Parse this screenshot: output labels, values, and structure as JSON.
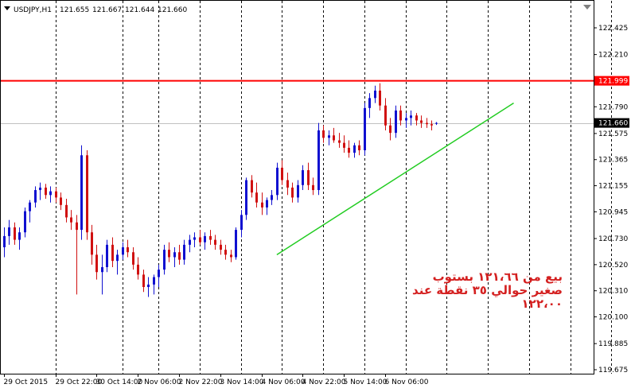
{
  "header": {
    "symbol": "USDJPY,H1",
    "open": "121.655",
    "high": "121.667",
    "low": "121.644",
    "close": "121.660"
  },
  "colors": {
    "bull_candle": "#1010d0",
    "bear_candle": "#d01010",
    "grid": "#000000",
    "resistance_line": "#ff0000",
    "trend_line": "#22cc22",
    "current_price_line": "#c0c0c0",
    "note_text": "#d42020"
  },
  "annotation": {
    "lines": [
      "بيع من ١٢١،٦٦ بستوب",
      "صغير حوالي ٣٥ نقطة عند",
      "١٢٢،٠٠"
    ]
  },
  "chart_data": {
    "type": "candlestick",
    "title": "",
    "xlabel": "",
    "ylabel": "",
    "ylim": [
      119.65,
      122.5
    ],
    "grid": true,
    "x_tick_labels": [
      "29 Oct 2015",
      "29 Oct 22:00",
      "30 Oct 14:00",
      "2 Nov 06:00",
      "2 Nov 22:00",
      "3 Nov 14:00",
      "4 Nov 06:00",
      "4 Nov 22:00",
      "5 Nov 14:00",
      "6 Nov 06:00"
    ],
    "y_tick_labels": [
      "122.425",
      "122.210",
      "121.790",
      "121.575",
      "121.365",
      "121.155",
      "120.945",
      "120.730",
      "120.520",
      "120.310",
      "120.100",
      "119.885",
      "119.675"
    ],
    "y_ticks": [
      122.425,
      122.21,
      121.79,
      121.575,
      121.365,
      121.155,
      120.945,
      120.73,
      120.52,
      120.31,
      120.1,
      119.885,
      119.675
    ],
    "resistance_level": {
      "value": 121.999,
      "label": "121.999"
    },
    "current_price": {
      "value": 121.66,
      "label": "121.660"
    },
    "trend_line": {
      "start": [
        53,
        120.6
      ],
      "end": [
        99,
        121.82
      ]
    },
    "vline_bars": [
      10,
      23,
      30,
      38,
      46,
      54,
      62,
      70,
      78,
      86,
      94,
      102,
      110,
      118,
      126
    ],
    "xtick_bars": [
      0,
      10,
      18,
      26,
      34,
      42,
      50,
      58,
      66,
      74
    ],
    "candles": [
      {
        "o": 120.66,
        "h": 120.82,
        "l": 120.58,
        "c": 120.75
      },
      {
        "o": 120.75,
        "h": 120.88,
        "l": 120.68,
        "c": 120.82
      },
      {
        "o": 120.82,
        "h": 120.86,
        "l": 120.68,
        "c": 120.72
      },
      {
        "o": 120.72,
        "h": 120.82,
        "l": 120.64,
        "c": 120.78
      },
      {
        "o": 120.78,
        "h": 120.98,
        "l": 120.74,
        "c": 120.95
      },
      {
        "o": 120.95,
        "h": 121.04,
        "l": 120.86,
        "c": 121.02
      },
      {
        "o": 121.02,
        "h": 121.15,
        "l": 120.98,
        "c": 121.12
      },
      {
        "o": 121.12,
        "h": 121.18,
        "l": 121.04,
        "c": 121.14
      },
      {
        "o": 121.14,
        "h": 121.17,
        "l": 121.05,
        "c": 121.08
      },
      {
        "o": 121.08,
        "h": 121.15,
        "l": 121.02,
        "c": 121.11
      },
      {
        "o": 121.11,
        "h": 121.14,
        "l": 121.02,
        "c": 121.06
      },
      {
        "o": 121.06,
        "h": 121.1,
        "l": 120.96,
        "c": 121.0
      },
      {
        "o": 121.0,
        "h": 121.05,
        "l": 120.86,
        "c": 120.9
      },
      {
        "o": 120.9,
        "h": 120.96,
        "l": 120.8,
        "c": 120.86
      },
      {
        "o": 120.86,
        "h": 120.92,
        "l": 120.28,
        "c": 120.8
      },
      {
        "o": 120.8,
        "h": 121.48,
        "l": 120.72,
        "c": 121.4
      },
      {
        "o": 121.4,
        "h": 121.44,
        "l": 120.72,
        "c": 120.78
      },
      {
        "o": 120.78,
        "h": 120.84,
        "l": 120.52,
        "c": 120.6
      },
      {
        "o": 120.6,
        "h": 120.68,
        "l": 120.4,
        "c": 120.46
      },
      {
        "o": 120.46,
        "h": 120.6,
        "l": 120.28,
        "c": 120.5
      },
      {
        "o": 120.5,
        "h": 120.72,
        "l": 120.46,
        "c": 120.68
      },
      {
        "o": 120.68,
        "h": 120.74,
        "l": 120.5,
        "c": 120.55
      },
      {
        "o": 120.55,
        "h": 120.64,
        "l": 120.44,
        "c": 120.6
      },
      {
        "o": 120.6,
        "h": 120.7,
        "l": 120.56,
        "c": 120.66
      },
      {
        "o": 120.66,
        "h": 120.72,
        "l": 120.58,
        "c": 120.62
      },
      {
        "o": 120.62,
        "h": 120.66,
        "l": 120.48,
        "c": 120.52
      },
      {
        "o": 120.52,
        "h": 120.58,
        "l": 120.4,
        "c": 120.44
      },
      {
        "o": 120.44,
        "h": 120.48,
        "l": 120.3,
        "c": 120.34
      },
      {
        "o": 120.34,
        "h": 120.42,
        "l": 120.26,
        "c": 120.36
      },
      {
        "o": 120.36,
        "h": 120.44,
        "l": 120.28,
        "c": 120.42
      },
      {
        "o": 120.42,
        "h": 120.52,
        "l": 120.34,
        "c": 120.48
      },
      {
        "o": 120.48,
        "h": 120.68,
        "l": 120.44,
        "c": 120.64
      },
      {
        "o": 120.64,
        "h": 120.7,
        "l": 120.54,
        "c": 120.58
      },
      {
        "o": 120.58,
        "h": 120.66,
        "l": 120.5,
        "c": 120.62
      },
      {
        "o": 120.62,
        "h": 120.68,
        "l": 120.52,
        "c": 120.56
      },
      {
        "o": 120.56,
        "h": 120.72,
        "l": 120.52,
        "c": 120.68
      },
      {
        "o": 120.68,
        "h": 120.76,
        "l": 120.62,
        "c": 120.72
      },
      {
        "o": 120.72,
        "h": 120.78,
        "l": 120.66,
        "c": 120.74
      },
      {
        "o": 120.74,
        "h": 120.8,
        "l": 120.68,
        "c": 120.7
      },
      {
        "o": 120.7,
        "h": 120.78,
        "l": 120.64,
        "c": 120.75
      },
      {
        "o": 120.75,
        "h": 120.8,
        "l": 120.68,
        "c": 120.72
      },
      {
        "o": 120.72,
        "h": 120.76,
        "l": 120.64,
        "c": 120.68
      },
      {
        "o": 120.68,
        "h": 120.72,
        "l": 120.6,
        "c": 120.64
      },
      {
        "o": 120.64,
        "h": 120.68,
        "l": 120.56,
        "c": 120.6
      },
      {
        "o": 120.6,
        "h": 120.64,
        "l": 120.54,
        "c": 120.58
      },
      {
        "o": 120.58,
        "h": 120.82,
        "l": 120.56,
        "c": 120.8
      },
      {
        "o": 120.8,
        "h": 120.96,
        "l": 120.74,
        "c": 120.92
      },
      {
        "o": 120.92,
        "h": 121.22,
        "l": 120.88,
        "c": 121.2
      },
      {
        "o": 121.2,
        "h": 121.24,
        "l": 121.06,
        "c": 121.1
      },
      {
        "o": 121.1,
        "h": 121.18,
        "l": 120.98,
        "c": 121.02
      },
      {
        "o": 121.02,
        "h": 121.1,
        "l": 120.92,
        "c": 120.98
      },
      {
        "o": 120.98,
        "h": 121.06,
        "l": 120.92,
        "c": 121.04
      },
      {
        "o": 121.04,
        "h": 121.12,
        "l": 121.0,
        "c": 121.08
      },
      {
        "o": 121.08,
        "h": 121.34,
        "l": 121.04,
        "c": 121.3
      },
      {
        "o": 121.3,
        "h": 121.36,
        "l": 121.16,
        "c": 121.2
      },
      {
        "o": 121.2,
        "h": 121.26,
        "l": 121.08,
        "c": 121.14
      },
      {
        "o": 121.14,
        "h": 121.18,
        "l": 121.02,
        "c": 121.06
      },
      {
        "o": 121.06,
        "h": 121.2,
        "l": 121.02,
        "c": 121.16
      },
      {
        "o": 121.16,
        "h": 121.32,
        "l": 121.12,
        "c": 121.28
      },
      {
        "o": 121.28,
        "h": 121.34,
        "l": 121.12,
        "c": 121.16
      },
      {
        "o": 121.16,
        "h": 121.22,
        "l": 121.08,
        "c": 121.12
      },
      {
        "o": 121.12,
        "h": 121.66,
        "l": 121.08,
        "c": 121.6
      },
      {
        "o": 121.6,
        "h": 121.64,
        "l": 121.5,
        "c": 121.54
      },
      {
        "o": 121.54,
        "h": 121.6,
        "l": 121.48,
        "c": 121.56
      },
      {
        "o": 121.56,
        "h": 121.62,
        "l": 121.5,
        "c": 121.52
      },
      {
        "o": 121.52,
        "h": 121.58,
        "l": 121.46,
        "c": 121.5
      },
      {
        "o": 121.5,
        "h": 121.56,
        "l": 121.42,
        "c": 121.46
      },
      {
        "o": 121.46,
        "h": 121.52,
        "l": 121.38,
        "c": 121.42
      },
      {
        "o": 121.42,
        "h": 121.5,
        "l": 121.38,
        "c": 121.48
      },
      {
        "o": 121.48,
        "h": 121.52,
        "l": 121.4,
        "c": 121.44
      },
      {
        "o": 121.44,
        "h": 121.82,
        "l": 121.4,
        "c": 121.78
      },
      {
        "o": 121.78,
        "h": 121.9,
        "l": 121.7,
        "c": 121.86
      },
      {
        "o": 121.86,
        "h": 121.96,
        "l": 121.82,
        "c": 121.92
      },
      {
        "o": 121.92,
        "h": 121.98,
        "l": 121.76,
        "c": 121.8
      },
      {
        "o": 121.8,
        "h": 121.86,
        "l": 121.6,
        "c": 121.64
      },
      {
        "o": 121.64,
        "h": 121.7,
        "l": 121.52,
        "c": 121.58
      },
      {
        "o": 121.58,
        "h": 121.8,
        "l": 121.54,
        "c": 121.76
      },
      {
        "o": 121.76,
        "h": 121.8,
        "l": 121.64,
        "c": 121.68
      },
      {
        "o": 121.68,
        "h": 121.74,
        "l": 121.62,
        "c": 121.7
      },
      {
        "o": 121.7,
        "h": 121.76,
        "l": 121.64,
        "c": 121.72
      },
      {
        "o": 121.72,
        "h": 121.74,
        "l": 121.64,
        "c": 121.68
      },
      {
        "o": 121.68,
        "h": 121.72,
        "l": 121.62,
        "c": 121.66
      },
      {
        "o": 121.66,
        "h": 121.7,
        "l": 121.62,
        "c": 121.65
      },
      {
        "o": 121.65,
        "h": 121.68,
        "l": 121.6,
        "c": 121.64
      },
      {
        "o": 121.655,
        "h": 121.667,
        "l": 121.644,
        "c": 121.66
      }
    ]
  }
}
